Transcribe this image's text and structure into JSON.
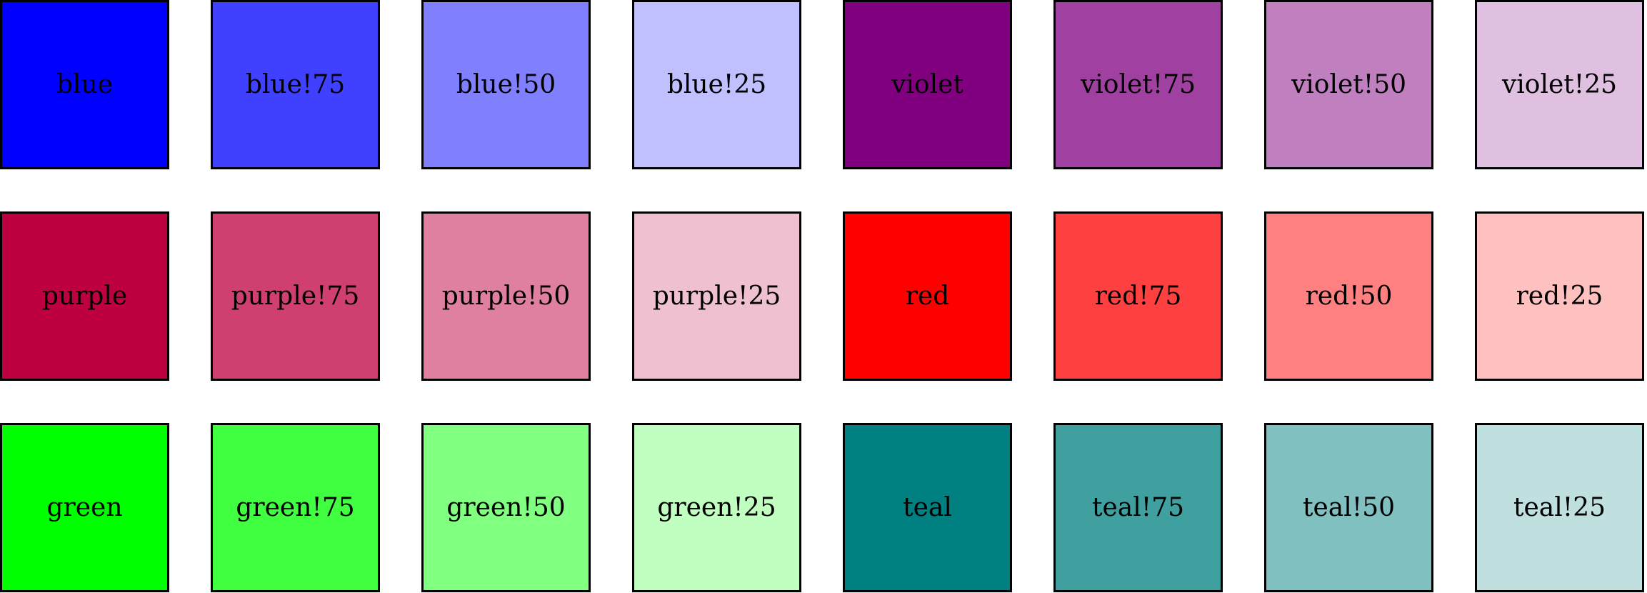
{
  "swatches": [
    [
      {
        "label": "blue",
        "color": "#0000FF"
      },
      {
        "label": "blue!75",
        "color": "#4040FF"
      },
      {
        "label": "blue!50",
        "color": "#8080FF"
      },
      {
        "label": "blue!25",
        "color": "#C0C0FF"
      },
      {
        "label": "violet",
        "color": "#800080"
      },
      {
        "label": "violet!75",
        "color": "#A040A0"
      },
      {
        "label": "violet!50",
        "color": "#C080C0"
      },
      {
        "label": "violet!25",
        "color": "#E0C0E0"
      }
    ],
    [
      {
        "label": "purple",
        "color": "#BF0040"
      },
      {
        "label": "purple!75",
        "color": "#CF4070"
      },
      {
        "label": "purple!50",
        "color": "#DF80A0"
      },
      {
        "label": "purple!25",
        "color": "#EFC0D0"
      },
      {
        "label": "red",
        "color": "#FF0000"
      },
      {
        "label": "red!75",
        "color": "#FF4040"
      },
      {
        "label": "red!50",
        "color": "#FF8080"
      },
      {
        "label": "red!25",
        "color": "#FFC0C0"
      }
    ],
    [
      {
        "label": "green",
        "color": "#00FF00"
      },
      {
        "label": "green!75",
        "color": "#40FF40"
      },
      {
        "label": "green!50",
        "color": "#80FF80"
      },
      {
        "label": "green!25",
        "color": "#C0FFC0"
      },
      {
        "label": "teal",
        "color": "#008080"
      },
      {
        "label": "teal!75",
        "color": "#40A0A0"
      },
      {
        "label": "teal!50",
        "color": "#80C0C0"
      },
      {
        "label": "teal!25",
        "color": "#C0E0E0"
      }
    ]
  ]
}
